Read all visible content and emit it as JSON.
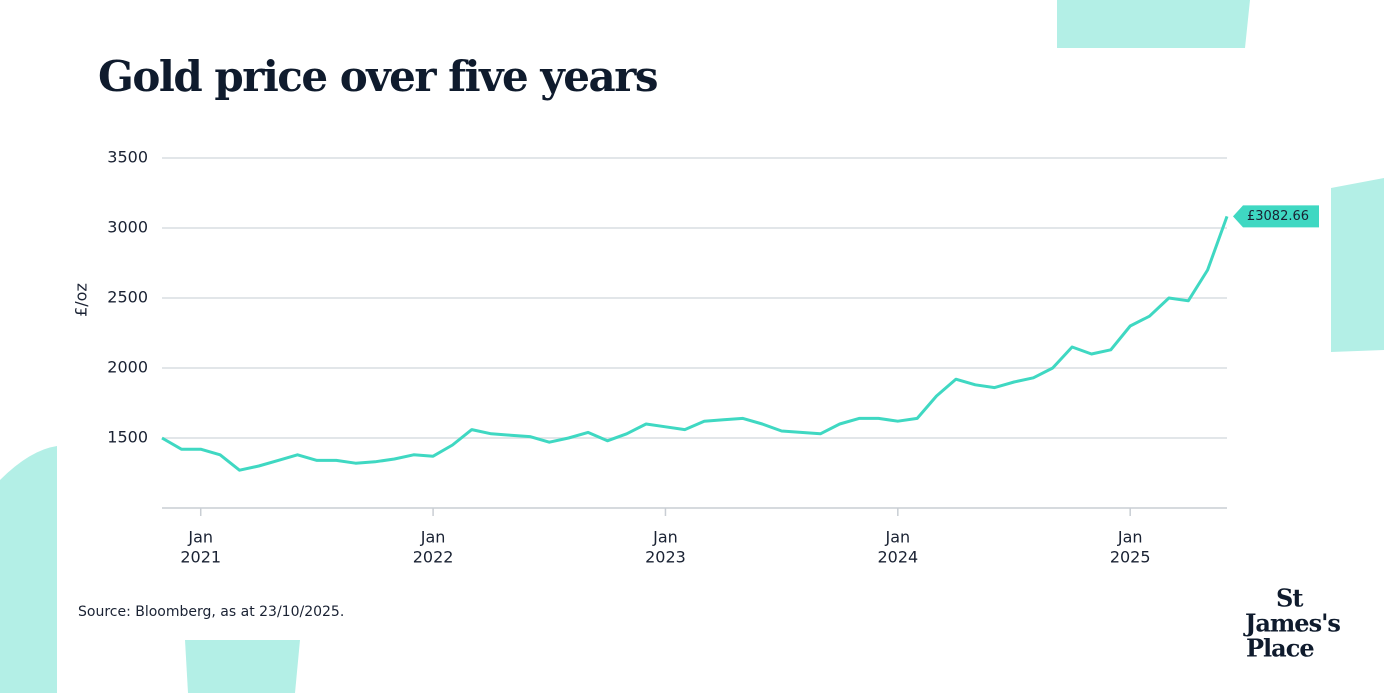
{
  "chart_data": {
    "type": "line",
    "title": "Gold price over five years",
    "ylabel": "£/oz",
    "source": "Source: Bloomberg, as at 23/10/2025.",
    "brand": [
      "St",
      "James's",
      "Place"
    ],
    "end_label": "£3082.66",
    "x": [
      "2020-11",
      "2020-12",
      "2021-01",
      "2021-02",
      "2021-03",
      "2021-04",
      "2021-05",
      "2021-06",
      "2021-07",
      "2021-08",
      "2021-09",
      "2021-10",
      "2021-11",
      "2021-12",
      "2022-01",
      "2022-02",
      "2022-03",
      "2022-04",
      "2022-05",
      "2022-06",
      "2022-07",
      "2022-08",
      "2022-09",
      "2022-10",
      "2022-11",
      "2022-12",
      "2023-01",
      "2023-02",
      "2023-03",
      "2023-04",
      "2023-05",
      "2023-06",
      "2023-07",
      "2023-08",
      "2023-09",
      "2023-10",
      "2023-11",
      "2023-12",
      "2024-01",
      "2024-02",
      "2024-03",
      "2024-04",
      "2024-05",
      "2024-06",
      "2024-07",
      "2024-08",
      "2024-09",
      "2024-10",
      "2024-11",
      "2024-12",
      "2025-01",
      "2025-02",
      "2025-03",
      "2025-04",
      "2025-05",
      "2025-06"
    ],
    "series": [
      {
        "name": "Gold price",
        "color": "#3fd8c2",
        "values": [
          1500,
          1420,
          1420,
          1380,
          1270,
          1300,
          1340,
          1380,
          1340,
          1340,
          1320,
          1330,
          1350,
          1380,
          1370,
          1450,
          1560,
          1530,
          1520,
          1510,
          1470,
          1500,
          1540,
          1480,
          1530,
          1600,
          1580,
          1560,
          1620,
          1630,
          1640,
          1600,
          1550,
          1540,
          1530,
          1600,
          1640,
          1640,
          1620,
          1640,
          1800,
          1920,
          1880,
          1860,
          1900,
          1930,
          2000,
          2150,
          2100,
          2130,
          2300,
          2370,
          2500,
          2480,
          2700,
          3082.66
        ]
      }
    ],
    "xlim": [
      "2020-11",
      "2025-06"
    ],
    "xticks": [
      {
        "value": "2021-01",
        "label": [
          "Jan",
          "2021"
        ]
      },
      {
        "value": "2022-01",
        "label": [
          "Jan",
          "2022"
        ]
      },
      {
        "value": "2023-01",
        "label": [
          "Jan",
          "2023"
        ]
      },
      {
        "value": "2024-01",
        "label": [
          "Jan",
          "2024"
        ]
      },
      {
        "value": "2025-01",
        "label": [
          "Jan",
          "2025"
        ]
      }
    ],
    "ylim": [
      1000,
      3500
    ],
    "yticks": [
      1500,
      2000,
      2500,
      3000,
      3500
    ],
    "grid": true
  }
}
